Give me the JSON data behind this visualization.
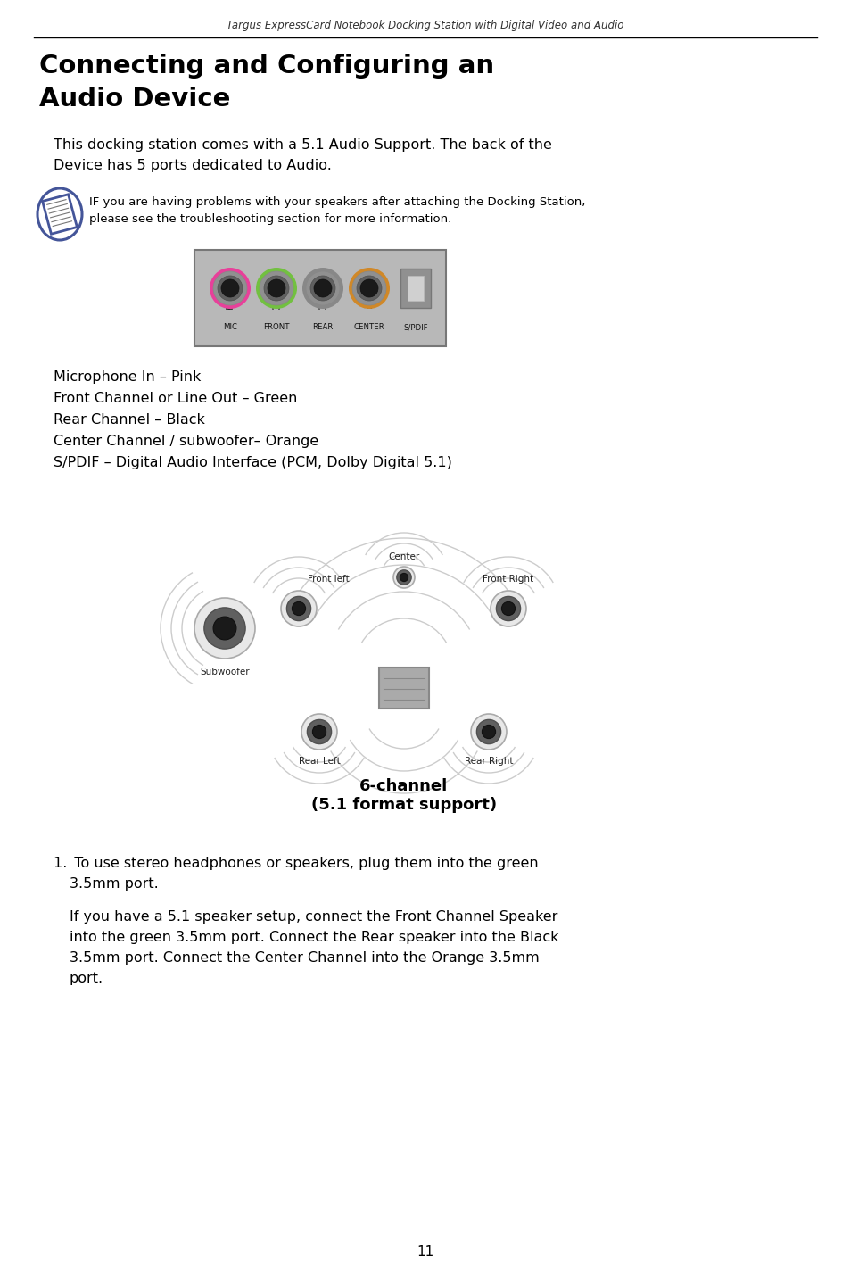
{
  "header_italic": "Targus ExpressCard Notebook Docking Station with Digital Video and Audio",
  "title_line1": "Connecting and Configuring an",
  "title_line2": "Audio Device",
  "body_line1": "This docking station comes with a 5.1 Audio Support. The back of the",
  "body_line2": "Device has 5 ports dedicated to Audio.",
  "note_line1": "IF you are having problems with your speakers after attaching the Docking Station,",
  "note_line2": "please see the troubleshooting section for more information.",
  "port_labels": [
    "MIC",
    "FRONT",
    "REAR",
    "CENTER",
    "S/PDIF"
  ],
  "port_ring_colors": [
    "#e8409a",
    "#72c040",
    "#888888",
    "#d08828",
    "#999999"
  ],
  "bullet_lines": [
    "Microphone In – Pink",
    "Front Channel or Line Out – Green",
    "Rear Channel – Black",
    "Center Channel / subwoofer– Orange",
    "S/PDIF – Digital Audio Interface (PCM, Dolby Digital 5.1)"
  ],
  "diagram_caption1": "6-channel",
  "diagram_caption2": "(5.1 format support)",
  "num1_line1": "To use stereo headphones or speakers, plug them into the green",
  "num1_line2": "3.5mm port.",
  "num2_lines": [
    "If you have a 5.1 speaker setup, connect the Front Channel Speaker",
    "into the green 3.5mm port. Connect the Rear speaker into the Black",
    "3.5mm port. Connect the Center Channel into the Orange 3.5mm",
    "port."
  ],
  "page_number": "11",
  "bg_color": "#ffffff",
  "text_color": "#000000",
  "panel_bg": "#b8b8b8",
  "panel_border": "#777777"
}
